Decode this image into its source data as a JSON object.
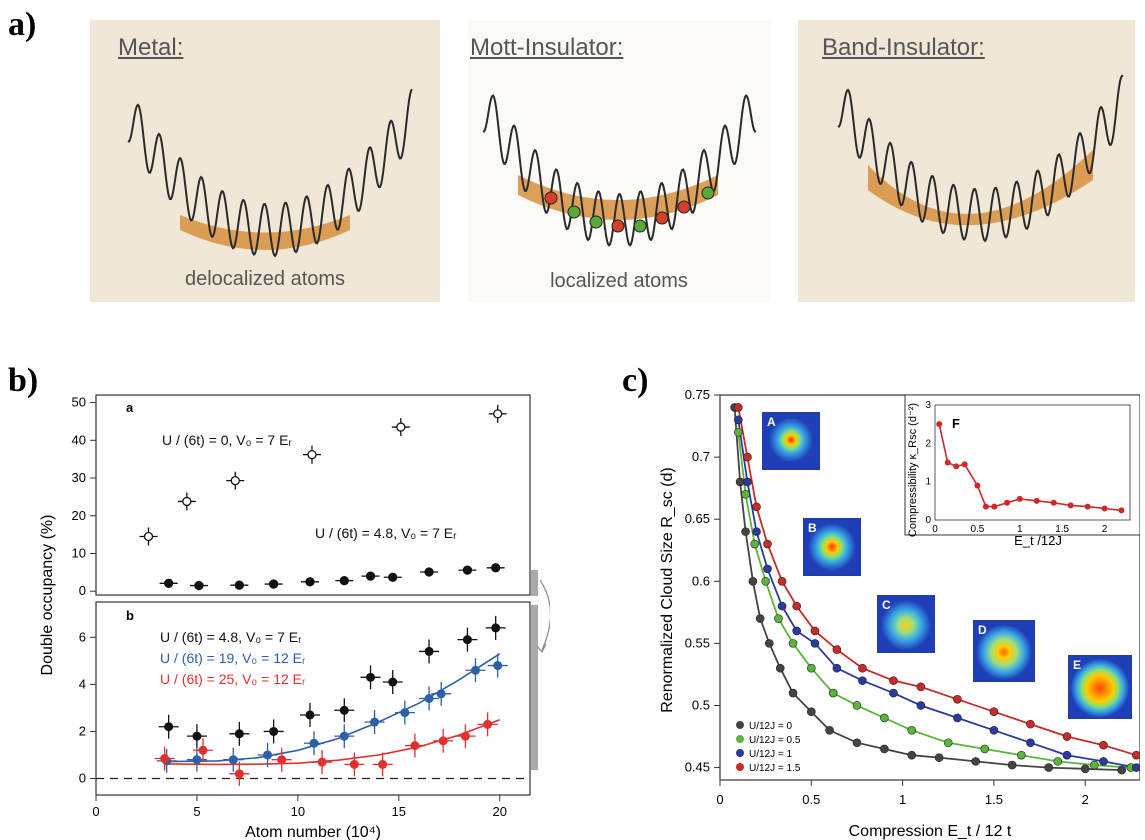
{
  "figure": {
    "panel_labels": {
      "a": "a)",
      "b": "b)",
      "c": "c)"
    },
    "panel_a": {
      "boxes": [
        {
          "title": "Metal:",
          "caption": "delocalized atoms"
        },
        {
          "title": "Mott-Insulator:",
          "caption": "localized atoms"
        },
        {
          "title": "Band-Insulator:",
          "caption": ""
        }
      ],
      "colors": {
        "sine": "#2a2a2a",
        "fill": "#d78f3c",
        "red_dot": "#d4402a",
        "green_dot": "#5aa83a",
        "background": "#f1e7d6"
      }
    },
    "panel_b": {
      "subpanel_labels": [
        "a",
        "b"
      ],
      "ylabel": "Double occupancy (%)",
      "xlabel": "Atom number (10⁴)",
      "annotations_a": [
        "U / (6t) = 0,  V₀ = 7 Eᵣ",
        "U / (6t) = 4.8,  V₀ = 7 Eᵣ"
      ],
      "legend_b": [
        {
          "text": "U / (6t) = 4.8,  V₀ = 7 Eᵣ",
          "color": "#111111"
        },
        {
          "text": "U / (6t) = 19,  V₀ = 12 Eᵣ",
          "color": "#2c5fa8"
        },
        {
          "text": "U / (6t) = 25,  V₀ = 12 Eᵣ",
          "color": "#e03030"
        }
      ]
    },
    "panel_c": {
      "ylabel": "Renormalized Cloud Size R_sc (d)",
      "xlabel": "Compression E_t / 12 t",
      "thumb_labels": [
        "A",
        "B",
        "C",
        "D",
        "E"
      ],
      "inset": {
        "label": "F",
        "ylabel": "Compressibility κ_Rsc (d⁻²)",
        "xlabel": "E_t /12J"
      },
      "legend": [
        "U/12J = 0",
        "U/12J = 0.5",
        "U/12J = 1",
        "U/12J = 1.5"
      ]
    }
  },
  "chart_data": [
    {
      "type": "scatter",
      "title": "",
      "subpanel": "a",
      "xlabel": "Atom number (10⁴)",
      "ylabel": "Double occupancy (%)",
      "xlim": [
        0,
        21.5
      ],
      "ylim": [
        -1,
        52
      ],
      "xticks": [
        0,
        5,
        10,
        15,
        20
      ],
      "yticks": [
        0,
        10,
        20,
        30,
        40,
        50
      ],
      "series": [
        {
          "name": "U / (6t) = 0,  V₀ = 7 Eᵣ",
          "color": "#111111",
          "marker": "open",
          "x": [
            2.6,
            4.5,
            6.9,
            10.7,
            15.1,
            19.9
          ],
          "y": [
            14.5,
            23.8,
            29.3,
            36.2,
            43.5,
            47.0
          ]
        },
        {
          "name": "U / (6t) = 4.8,  V₀ = 7 Eᵣ",
          "color": "#111111",
          "marker": "filled",
          "x": [
            3.6,
            5.1,
            7.1,
            8.8,
            10.6,
            12.3,
            13.6,
            14.7,
            16.5,
            18.4,
            19.8
          ],
          "y": [
            2.1,
            1.5,
            1.6,
            1.9,
            2.5,
            2.8,
            4.0,
            3.7,
            5.1,
            5.6,
            6.2
          ]
        }
      ]
    },
    {
      "type": "scatter",
      "title": "",
      "subpanel": "b",
      "xlabel": "Atom number (10⁴)",
      "ylabel": "Double occupancy (%)",
      "xlim": [
        0,
        21.5
      ],
      "ylim": [
        -0.7,
        7.5
      ],
      "xticks": [
        0,
        5,
        10,
        15,
        20
      ],
      "yticks": [
        0,
        2,
        4,
        6
      ],
      "series": [
        {
          "name": "U / (6t) = 4.8,  V₀ = 7 Eᵣ",
          "color": "#111111",
          "x": [
            3.6,
            5.0,
            7.1,
            8.8,
            10.6,
            12.3,
            13.6,
            14.7,
            16.5,
            18.4,
            19.8
          ],
          "y": [
            2.2,
            1.8,
            1.9,
            2.0,
            2.7,
            2.9,
            4.3,
            4.1,
            5.4,
            5.9,
            6.4
          ]
        },
        {
          "name": "U / (6t) = 19,  V₀ = 12 Eᵣ",
          "color": "#2c5fa8",
          "x": [
            3.5,
            5.0,
            6.8,
            8.5,
            10.8,
            12.3,
            13.8,
            15.3,
            16.5,
            17.1,
            18.8,
            19.9
          ],
          "y": [
            0.75,
            0.8,
            0.8,
            1.0,
            1.5,
            1.8,
            2.4,
            2.8,
            3.4,
            3.6,
            4.6,
            4.8
          ]
        },
        {
          "name": "U / (6t) = 25,  V₀ = 12 Eᵣ",
          "color": "#e03030",
          "x": [
            3.4,
            5.3,
            7.1,
            9.2,
            11.2,
            12.8,
            14.2,
            15.8,
            17.2,
            18.3,
            19.4
          ],
          "y": [
            0.85,
            1.2,
            0.2,
            0.8,
            0.7,
            0.6,
            0.6,
            1.4,
            1.6,
            1.8,
            2.3
          ]
        }
      ],
      "fits": [
        {
          "color": "#2c5fa8",
          "x": [
            3.5,
            6,
            8,
            10,
            12,
            14,
            16,
            18,
            20
          ],
          "y": [
            0.72,
            0.75,
            0.88,
            1.2,
            1.7,
            2.4,
            3.2,
            4.2,
            5.3
          ]
        },
        {
          "color": "#e03030",
          "x": [
            3.5,
            6,
            8,
            10,
            12,
            14,
            16,
            18,
            20
          ],
          "y": [
            0.62,
            0.6,
            0.61,
            0.65,
            0.78,
            1.0,
            1.35,
            1.85,
            2.5
          ]
        }
      ]
    },
    {
      "type": "scatter",
      "title": "",
      "xlabel": "Compression E_t / 12 t",
      "ylabel": "Renormalized Cloud Size R_sc (d)",
      "xlim": [
        0,
        2.3
      ],
      "ylim": [
        0.44,
        0.75
      ],
      "xticks": [
        0,
        0.5,
        1,
        1.5,
        2
      ],
      "yticks": [
        0.45,
        0.5,
        0.55,
        0.6,
        0.65,
        0.7,
        0.75
      ],
      "series": [
        {
          "name": "U/12J = 0",
          "color": "#444444",
          "x": [
            0.08,
            0.11,
            0.14,
            0.18,
            0.22,
            0.27,
            0.33,
            0.4,
            0.5,
            0.6,
            0.75,
            0.9,
            1.05,
            1.2,
            1.4,
            1.6,
            1.8,
            2.0,
            2.2
          ],
          "y": [
            0.74,
            0.68,
            0.64,
            0.6,
            0.57,
            0.55,
            0.53,
            0.51,
            0.495,
            0.48,
            0.47,
            0.465,
            0.46,
            0.458,
            0.455,
            0.452,
            0.45,
            0.449,
            0.448
          ]
        },
        {
          "name": "U/12J = 0.5",
          "color": "#5ab53a",
          "x": [
            0.1,
            0.14,
            0.19,
            0.25,
            0.32,
            0.4,
            0.5,
            0.62,
            0.75,
            0.9,
            1.05,
            1.25,
            1.45,
            1.65,
            1.85,
            2.05,
            2.25
          ],
          "y": [
            0.72,
            0.67,
            0.63,
            0.6,
            0.57,
            0.55,
            0.53,
            0.51,
            0.5,
            0.49,
            0.48,
            0.47,
            0.465,
            0.46,
            0.455,
            0.452,
            0.45
          ]
        },
        {
          "name": "U/12J = 1",
          "color": "#2b3aa0",
          "x": [
            0.1,
            0.15,
            0.2,
            0.26,
            0.34,
            0.42,
            0.52,
            0.64,
            0.78,
            0.95,
            1.1,
            1.3,
            1.5,
            1.7,
            1.9,
            2.1,
            2.28
          ],
          "y": [
            0.73,
            0.68,
            0.64,
            0.61,
            0.58,
            0.56,
            0.55,
            0.53,
            0.52,
            0.51,
            0.5,
            0.49,
            0.48,
            0.47,
            0.46,
            0.455,
            0.45
          ]
        },
        {
          "name": "U/12J = 1.5",
          "color": "#c92a2a",
          "x": [
            0.1,
            0.15,
            0.2,
            0.26,
            0.34,
            0.42,
            0.52,
            0.64,
            0.78,
            0.95,
            1.1,
            1.3,
            1.5,
            1.7,
            1.9,
            2.1,
            2.28
          ],
          "y": [
            0.74,
            0.7,
            0.66,
            0.63,
            0.6,
            0.58,
            0.56,
            0.545,
            0.53,
            0.52,
            0.515,
            0.505,
            0.495,
            0.485,
            0.475,
            0.468,
            0.46
          ]
        }
      ]
    },
    {
      "type": "line",
      "title": "",
      "subpanel": "F",
      "xlabel": "E_t /12J",
      "ylabel": "Compressibility κ_Rsc (d⁻²)",
      "xlim": [
        0,
        2.3
      ],
      "ylim": [
        0,
        3
      ],
      "xticks": [
        0,
        0.5,
        1,
        1.5,
        2
      ],
      "yticks": [
        0,
        1,
        2,
        3
      ],
      "series": [
        {
          "name": "",
          "color": "#c92a2a",
          "x": [
            0.05,
            0.15,
            0.25,
            0.35,
            0.5,
            0.6,
            0.7,
            0.85,
            1.0,
            1.2,
            1.4,
            1.6,
            1.8,
            2.0,
            2.2
          ],
          "y": [
            2.5,
            1.5,
            1.4,
            1.45,
            0.9,
            0.35,
            0.35,
            0.45,
            0.55,
            0.5,
            0.45,
            0.38,
            0.35,
            0.3,
            0.25
          ]
        }
      ]
    }
  ]
}
